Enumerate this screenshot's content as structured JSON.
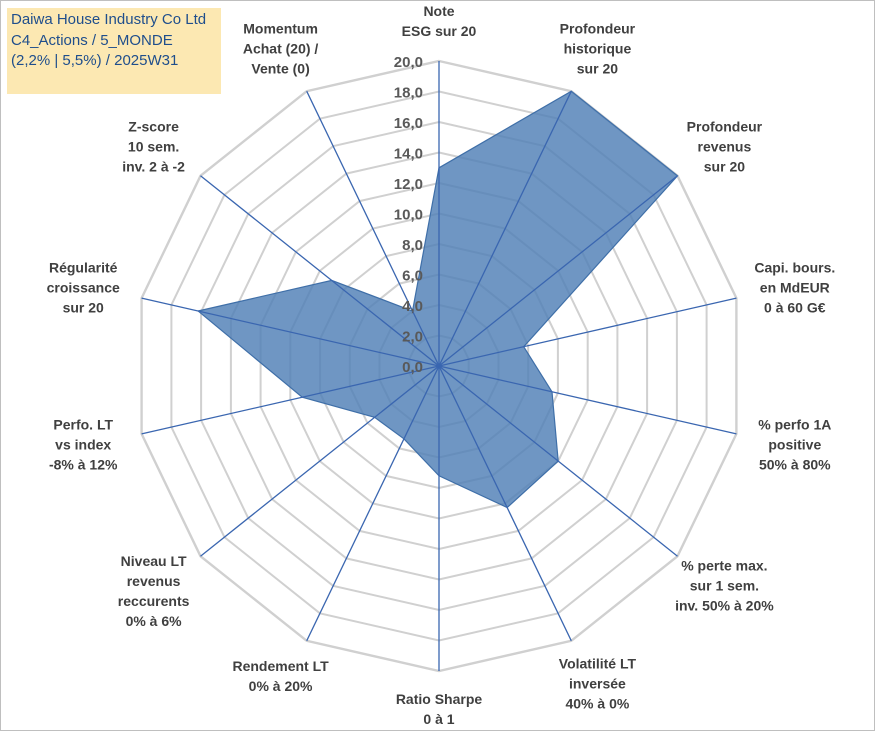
{
  "info": {
    "line1": "Daiwa House Industry Co Ltd",
    "line2": "C4_Actions / 5_MONDE",
    "line3": "(2,2% | 5,5%) / 2025W31"
  },
  "colors": {
    "fill": "#4f7fb6",
    "stroke": "#3f6fa8",
    "spoke": "#3a66b0",
    "grid": "#d0d0d0",
    "info_bg": "#fce8b2",
    "info_text": "#1f4e8c"
  },
  "chart_data": {
    "type": "radar",
    "title": "",
    "rmin": 0,
    "rmax": 20,
    "grid": true,
    "ticks": [
      "0,0",
      "2,0",
      "4,0",
      "6,0",
      "8,0",
      "10,0",
      "12,0",
      "14,0",
      "16,0",
      "18,0",
      "20,0"
    ],
    "axes": [
      [
        "Note",
        "ESG sur 20"
      ],
      [
        "Profondeur",
        "historique",
        "sur 20"
      ],
      [
        "Profondeur",
        "revenus",
        "sur 20"
      ],
      [
        "Capi. bours.",
        "en MdEUR",
        "0 à 60 G€"
      ],
      [
        "% perfo 1A",
        "positive",
        "50% à 80%"
      ],
      [
        "% perte max.",
        "sur 1 sem.",
        "inv. 50% à 20%"
      ],
      [
        "Volatilité LT",
        "inversée",
        "40% à 0%"
      ],
      [
        "Ratio Sharpe",
        "0 à 1"
      ],
      [
        "Rendement LT",
        "0% à 20%"
      ],
      [
        "Niveau LT",
        "revenus",
        "reccurents",
        "0% à 6%"
      ],
      [
        "Perfo. LT",
        "vs index",
        "-8% à 12%"
      ],
      [
        "Régularité",
        "croissance",
        "sur 20"
      ],
      [
        "Z-score",
        "10 sem.",
        "inv. 2 à -2"
      ],
      [
        "Momentum",
        "Achat (20) /",
        "Vente (0)"
      ]
    ],
    "values": [
      13.0,
      20.0,
      20.0,
      5.7,
      7.6,
      10.0,
      10.3,
      7.2,
      5.3,
      5.4,
      9.2,
      16.2,
      9.0,
      4.0
    ]
  }
}
